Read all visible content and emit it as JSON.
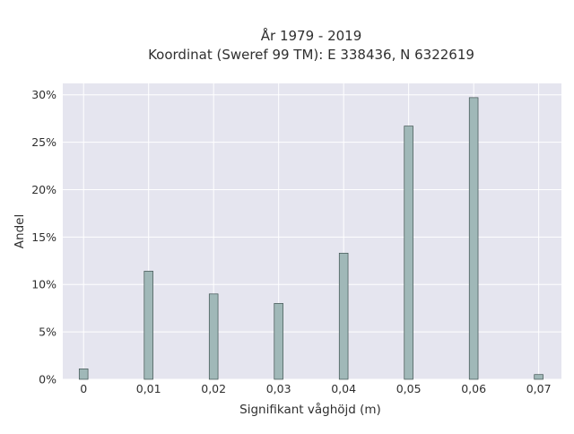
{
  "chart_data": {
    "type": "bar",
    "title_lines": [
      "År 1979 - 2019",
      "Koordinat (Sweref 99 TM): E 338436, N 6322619"
    ],
    "xlabel": "Signifikant våghöjd (m)",
    "ylabel": "Andel",
    "x": [
      0,
      0.01,
      0.02,
      0.03,
      0.04,
      0.05,
      0.06,
      0.07
    ],
    "values": [
      1.1,
      11.4,
      9.0,
      8.0,
      13.3,
      26.7,
      29.7,
      0.5
    ],
    "value_unit": "percent",
    "xlim": [
      -0.0032,
      0.0735
    ],
    "ylim": [
      0,
      31.2
    ],
    "x_ticks": [
      0,
      0.01,
      0.02,
      0.03,
      0.04,
      0.05,
      0.06,
      0.07
    ],
    "x_tick_labels": [
      "0",
      "0,01",
      "0,02",
      "0,03",
      "0,04",
      "0,05",
      "0,06",
      "0,07"
    ],
    "y_ticks": [
      0,
      5,
      10,
      15,
      20,
      25,
      30
    ],
    "y_tick_labels": [
      "0%",
      "5%",
      "10%",
      "15%",
      "20%",
      "25%",
      "30%"
    ],
    "bar_width_data": 0.00135,
    "grid": true,
    "colors": {
      "plot_background": "#e5e5ef",
      "grid": "#ffffff",
      "bar_fill": "#a0b8b8",
      "bar_stroke": "#3f5250"
    }
  }
}
